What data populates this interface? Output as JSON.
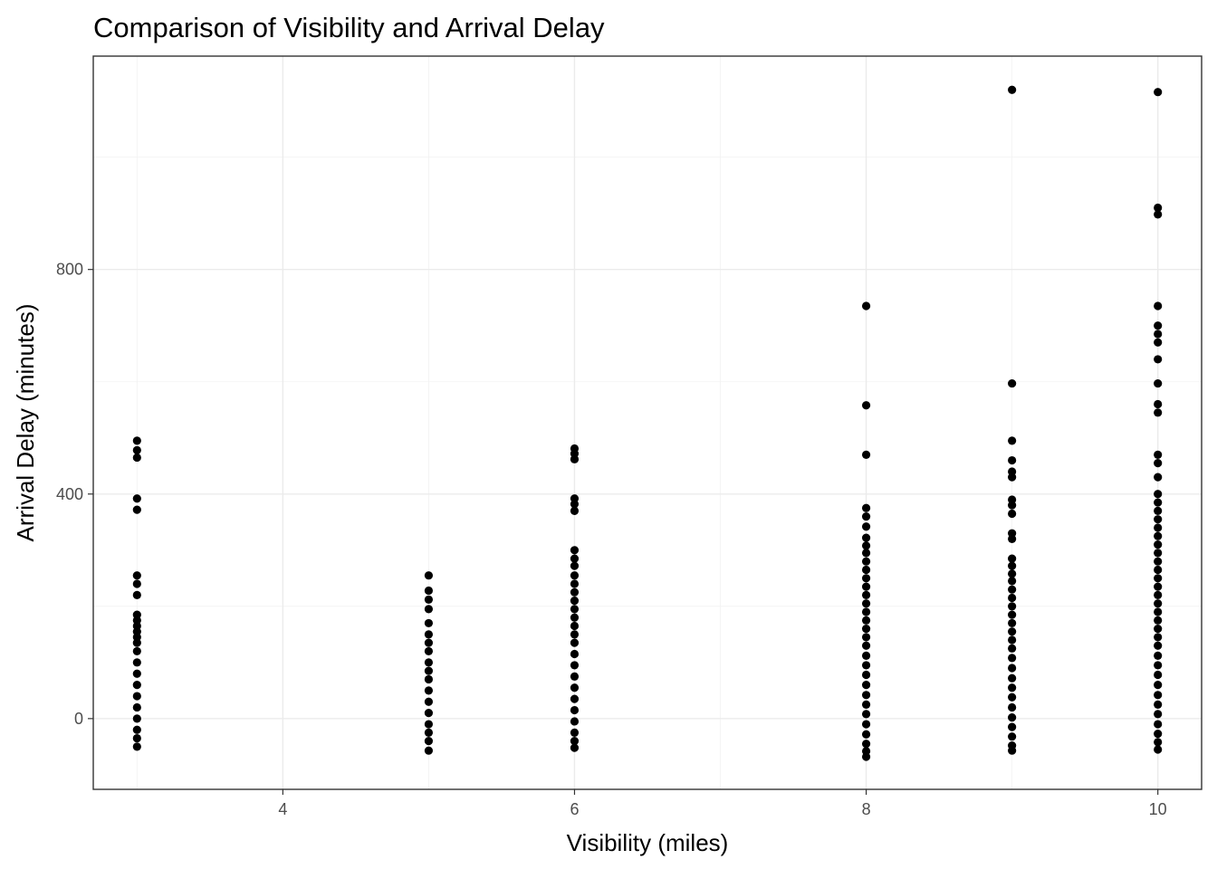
{
  "chart_data": {
    "type": "scatter",
    "title": "Comparison of Visibility and Arrival Delay",
    "xlabel": "Visibility (miles)",
    "ylabel": "Arrival Delay (minutes)",
    "xlim": [
      2.7,
      10.3
    ],
    "ylim": [
      -126,
      1180
    ],
    "x_ticks": [
      4,
      6,
      8,
      10
    ],
    "y_ticks": [
      0,
      400,
      800
    ],
    "grid": true,
    "legend": "none",
    "point_color": "#000000",
    "series": [
      {
        "points": [
          {
            "x": 3,
            "y": 495
          },
          {
            "x": 3,
            "y": 478
          },
          {
            "x": 3,
            "y": 465
          },
          {
            "x": 3,
            "y": 392
          },
          {
            "x": 3,
            "y": 372
          },
          {
            "x": 3,
            "y": 255
          },
          {
            "x": 3,
            "y": 240
          },
          {
            "x": 3,
            "y": 220
          },
          {
            "x": 3,
            "y": 185
          },
          {
            "x": 3,
            "y": 175
          },
          {
            "x": 3,
            "y": 165
          },
          {
            "x": 3,
            "y": 155
          },
          {
            "x": 3,
            "y": 145
          },
          {
            "x": 3,
            "y": 135
          },
          {
            "x": 3,
            "y": 120
          },
          {
            "x": 3,
            "y": 100
          },
          {
            "x": 3,
            "y": 80
          },
          {
            "x": 3,
            "y": 60
          },
          {
            "x": 3,
            "y": 40
          },
          {
            "x": 3,
            "y": 20
          },
          {
            "x": 3,
            "y": 0
          },
          {
            "x": 3,
            "y": -20
          },
          {
            "x": 3,
            "y": -35
          },
          {
            "x": 3,
            "y": -50
          },
          {
            "x": 5,
            "y": 255
          },
          {
            "x": 5,
            "y": 228
          },
          {
            "x": 5,
            "y": 212
          },
          {
            "x": 5,
            "y": 195
          },
          {
            "x": 5,
            "y": 170
          },
          {
            "x": 5,
            "y": 150
          },
          {
            "x": 5,
            "y": 135
          },
          {
            "x": 5,
            "y": 120
          },
          {
            "x": 5,
            "y": 100
          },
          {
            "x": 5,
            "y": 85
          },
          {
            "x": 5,
            "y": 70
          },
          {
            "x": 5,
            "y": 50
          },
          {
            "x": 5,
            "y": 30
          },
          {
            "x": 5,
            "y": 10
          },
          {
            "x": 5,
            "y": -10
          },
          {
            "x": 5,
            "y": -25
          },
          {
            "x": 5,
            "y": -40
          },
          {
            "x": 5,
            "y": -57
          },
          {
            "x": 6,
            "y": 481
          },
          {
            "x": 6,
            "y": 472
          },
          {
            "x": 6,
            "y": 462
          },
          {
            "x": 6,
            "y": 392
          },
          {
            "x": 6,
            "y": 382
          },
          {
            "x": 6,
            "y": 370
          },
          {
            "x": 6,
            "y": 300
          },
          {
            "x": 6,
            "y": 285
          },
          {
            "x": 6,
            "y": 272
          },
          {
            "x": 6,
            "y": 255
          },
          {
            "x": 6,
            "y": 240
          },
          {
            "x": 6,
            "y": 225
          },
          {
            "x": 6,
            "y": 210
          },
          {
            "x": 6,
            "y": 195
          },
          {
            "x": 6,
            "y": 180
          },
          {
            "x": 6,
            "y": 165
          },
          {
            "x": 6,
            "y": 150
          },
          {
            "x": 6,
            "y": 135
          },
          {
            "x": 6,
            "y": 115
          },
          {
            "x": 6,
            "y": 95
          },
          {
            "x": 6,
            "y": 75
          },
          {
            "x": 6,
            "y": 55
          },
          {
            "x": 6,
            "y": 35
          },
          {
            "x": 6,
            "y": 15
          },
          {
            "x": 6,
            "y": -5
          },
          {
            "x": 6,
            "y": -25
          },
          {
            "x": 6,
            "y": -40
          },
          {
            "x": 6,
            "y": -52
          },
          {
            "x": 8,
            "y": 735
          },
          {
            "x": 8,
            "y": 558
          },
          {
            "x": 8,
            "y": 470
          },
          {
            "x": 8,
            "y": 375
          },
          {
            "x": 8,
            "y": 360
          },
          {
            "x": 8,
            "y": 342
          },
          {
            "x": 8,
            "y": 322
          },
          {
            "x": 8,
            "y": 308
          },
          {
            "x": 8,
            "y": 295
          },
          {
            "x": 8,
            "y": 280
          },
          {
            "x": 8,
            "y": 265
          },
          {
            "x": 8,
            "y": 250
          },
          {
            "x": 8,
            "y": 235
          },
          {
            "x": 8,
            "y": 220
          },
          {
            "x": 8,
            "y": 205
          },
          {
            "x": 8,
            "y": 190
          },
          {
            "x": 8,
            "y": 175
          },
          {
            "x": 8,
            "y": 160
          },
          {
            "x": 8,
            "y": 145
          },
          {
            "x": 8,
            "y": 130
          },
          {
            "x": 8,
            "y": 112
          },
          {
            "x": 8,
            "y": 95
          },
          {
            "x": 8,
            "y": 78
          },
          {
            "x": 8,
            "y": 60
          },
          {
            "x": 8,
            "y": 42
          },
          {
            "x": 8,
            "y": 25
          },
          {
            "x": 8,
            "y": 8
          },
          {
            "x": 8,
            "y": -10
          },
          {
            "x": 8,
            "y": -28
          },
          {
            "x": 8,
            "y": -45
          },
          {
            "x": 8,
            "y": -58
          },
          {
            "x": 8,
            "y": -68
          },
          {
            "x": 9,
            "y": 1120
          },
          {
            "x": 9,
            "y": 597
          },
          {
            "x": 9,
            "y": 495
          },
          {
            "x": 9,
            "y": 460
          },
          {
            "x": 9,
            "y": 440
          },
          {
            "x": 9,
            "y": 430
          },
          {
            "x": 9,
            "y": 390
          },
          {
            "x": 9,
            "y": 380
          },
          {
            "x": 9,
            "y": 365
          },
          {
            "x": 9,
            "y": 330
          },
          {
            "x": 9,
            "y": 320
          },
          {
            "x": 9,
            "y": 285
          },
          {
            "x": 9,
            "y": 272
          },
          {
            "x": 9,
            "y": 258
          },
          {
            "x": 9,
            "y": 245
          },
          {
            "x": 9,
            "y": 230
          },
          {
            "x": 9,
            "y": 215
          },
          {
            "x": 9,
            "y": 200
          },
          {
            "x": 9,
            "y": 185
          },
          {
            "x": 9,
            "y": 170
          },
          {
            "x": 9,
            "y": 155
          },
          {
            "x": 9,
            "y": 140
          },
          {
            "x": 9,
            "y": 125
          },
          {
            "x": 9,
            "y": 108
          },
          {
            "x": 9,
            "y": 90
          },
          {
            "x": 9,
            "y": 72
          },
          {
            "x": 9,
            "y": 55
          },
          {
            "x": 9,
            "y": 38
          },
          {
            "x": 9,
            "y": 20
          },
          {
            "x": 9,
            "y": 2
          },
          {
            "x": 9,
            "y": -15
          },
          {
            "x": 9,
            "y": -32
          },
          {
            "x": 9,
            "y": -48
          },
          {
            "x": 9,
            "y": -57
          },
          {
            "x": 10,
            "y": 1116
          },
          {
            "x": 10,
            "y": 910
          },
          {
            "x": 10,
            "y": 898
          },
          {
            "x": 10,
            "y": 735
          },
          {
            "x": 10,
            "y": 700
          },
          {
            "x": 10,
            "y": 685
          },
          {
            "x": 10,
            "y": 670
          },
          {
            "x": 10,
            "y": 640
          },
          {
            "x": 10,
            "y": 597
          },
          {
            "x": 10,
            "y": 560
          },
          {
            "x": 10,
            "y": 545
          },
          {
            "x": 10,
            "y": 470
          },
          {
            "x": 10,
            "y": 455
          },
          {
            "x": 10,
            "y": 430
          },
          {
            "x": 10,
            "y": 400
          },
          {
            "x": 10,
            "y": 385
          },
          {
            "x": 10,
            "y": 370
          },
          {
            "x": 10,
            "y": 355
          },
          {
            "x": 10,
            "y": 340
          },
          {
            "x": 10,
            "y": 325
          },
          {
            "x": 10,
            "y": 310
          },
          {
            "x": 10,
            "y": 295
          },
          {
            "x": 10,
            "y": 280
          },
          {
            "x": 10,
            "y": 265
          },
          {
            "x": 10,
            "y": 250
          },
          {
            "x": 10,
            "y": 235
          },
          {
            "x": 10,
            "y": 220
          },
          {
            "x": 10,
            "y": 205
          },
          {
            "x": 10,
            "y": 190
          },
          {
            "x": 10,
            "y": 175
          },
          {
            "x": 10,
            "y": 160
          },
          {
            "x": 10,
            "y": 145
          },
          {
            "x": 10,
            "y": 130
          },
          {
            "x": 10,
            "y": 112
          },
          {
            "x": 10,
            "y": 95
          },
          {
            "x": 10,
            "y": 78
          },
          {
            "x": 10,
            "y": 60
          },
          {
            "x": 10,
            "y": 42
          },
          {
            "x": 10,
            "y": 25
          },
          {
            "x": 10,
            "y": 8
          },
          {
            "x": 10,
            "y": -10
          },
          {
            "x": 10,
            "y": -27
          },
          {
            "x": 10,
            "y": -42
          },
          {
            "x": 10,
            "y": -55
          }
        ]
      }
    ]
  }
}
